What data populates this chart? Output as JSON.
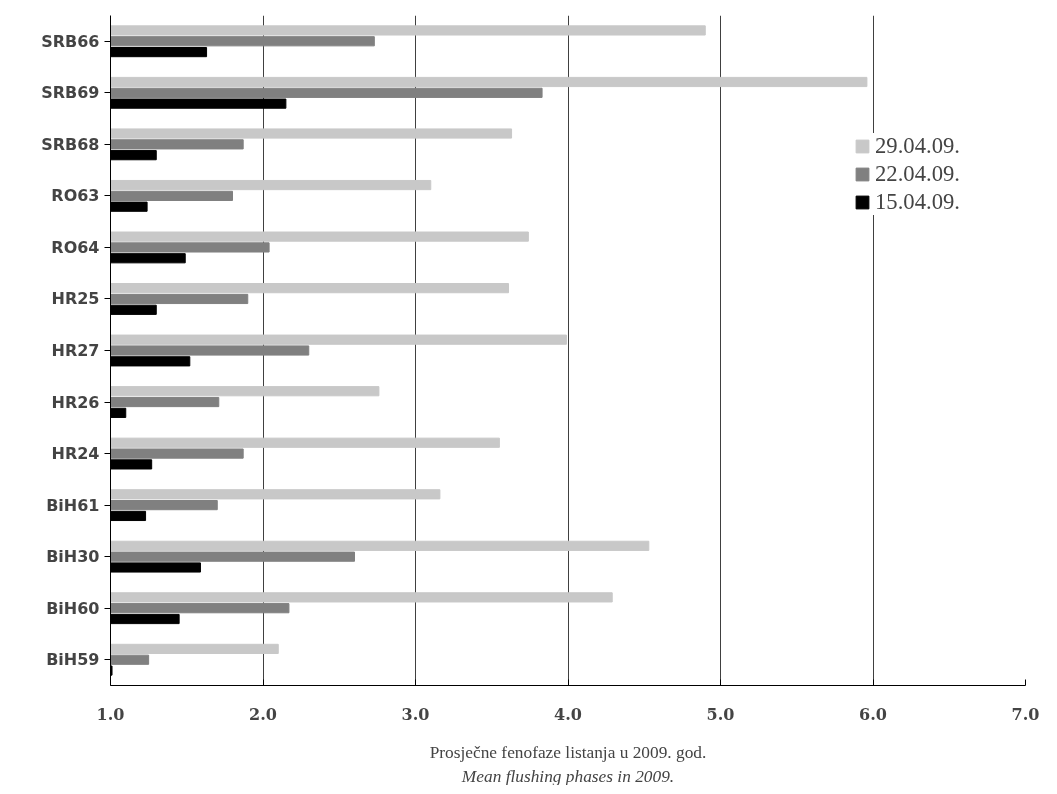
{
  "chart_data": {
    "type": "bar",
    "orientation": "horizontal",
    "xlabel": "Prosječne fenofaze listanja u 2009. god.",
    "annotations": [
      "Mean flushing phases in 2009."
    ],
    "categories": [
      "SRB66",
      "SRB69",
      "SRB68",
      "RO63",
      "RO64",
      "HR25",
      "HR27",
      "HR26",
      "HR24",
      "BiH61",
      "BiH30",
      "BiH60",
      "BiH59"
    ],
    "series": [
      {
        "name": "29.04.09.",
        "color": "#c8c8c8",
        "values": [
          4.9,
          5.96,
          3.63,
          3.1,
          3.74,
          3.61,
          3.99,
          2.76,
          3.55,
          3.16,
          4.53,
          4.29,
          2.1
        ]
      },
      {
        "name": "22.04.09.",
        "color": "#808080",
        "values": [
          2.73,
          3.83,
          1.87,
          1.8,
          2.04,
          1.9,
          2.3,
          1.71,
          1.87,
          1.7,
          2.6,
          2.17,
          1.25
        ]
      },
      {
        "name": "15.04.09.",
        "color": "#000000",
        "values": [
          1.63,
          2.15,
          1.3,
          1.24,
          1.49,
          1.3,
          1.52,
          1.1,
          1.27,
          1.23,
          1.59,
          1.45,
          1.01
        ]
      }
    ],
    "xlim": [
      1.0,
      7.0
    ],
    "xticks": [
      {
        "value": 1,
        "label": "1.0"
      },
      {
        "value": 2,
        "label": "2.0"
      },
      {
        "value": 3,
        "label": "3.0"
      },
      {
        "value": 4,
        "label": "4.0"
      },
      {
        "value": 5,
        "label": "5.0"
      },
      {
        "value": 6,
        "label": "6.0"
      },
      {
        "value": 7,
        "label": "7.0"
      }
    ],
    "grid": "x",
    "legend": "right"
  }
}
